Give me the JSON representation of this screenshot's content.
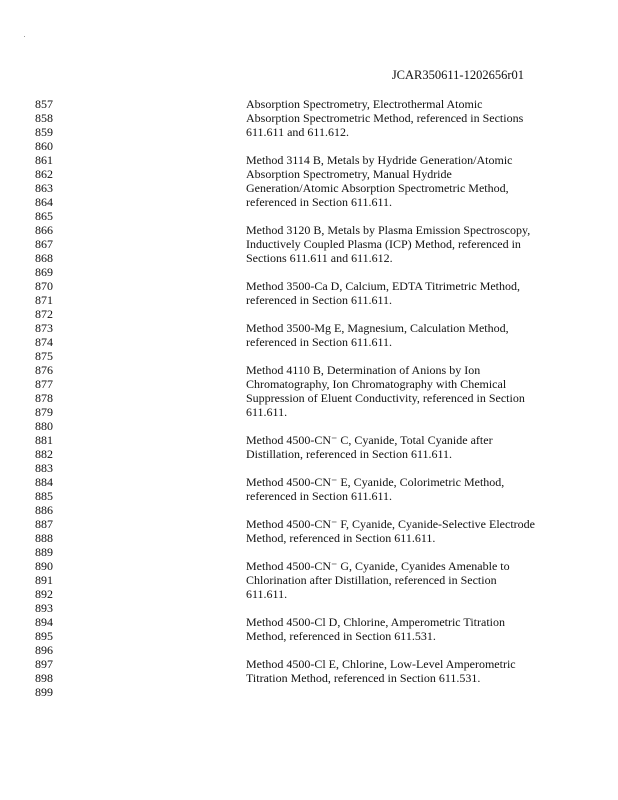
{
  "header": {
    "doc_id": "JCAR350611-1202656r01"
  },
  "lines": [
    {
      "n": "857",
      "t": "Absorption Spectrometry, Electrothermal Atomic"
    },
    {
      "n": "858",
      "t": "Absorption Spectrometric Method, referenced in Sections"
    },
    {
      "n": "859",
      "t": "611.611 and 611.612."
    },
    {
      "n": "860",
      "t": ""
    },
    {
      "n": "861",
      "t": "Method 3114 B, Metals by Hydride Generation/Atomic"
    },
    {
      "n": "862",
      "t": "Absorption Spectrometry, Manual Hydride"
    },
    {
      "n": "863",
      "t": "Generation/Atomic Absorption Spectrometric Method,"
    },
    {
      "n": "864",
      "t": "referenced in Section 611.611."
    },
    {
      "n": "865",
      "t": ""
    },
    {
      "n": "866",
      "t": "Method 3120 B, Metals by Plasma Emission Spectroscopy,"
    },
    {
      "n": "867",
      "t": "Inductively Coupled Plasma (ICP) Method, referenced in"
    },
    {
      "n": "868",
      "t": "Sections 611.611 and 611.612."
    },
    {
      "n": "869",
      "t": ""
    },
    {
      "n": "870",
      "t": "Method 3500-Ca D, Calcium, EDTA Titrimetric Method,"
    },
    {
      "n": "871",
      "t": "referenced in Section 611.611."
    },
    {
      "n": "872",
      "t": ""
    },
    {
      "n": "873",
      "t": "Method 3500-Mg E, Magnesium, Calculation Method,"
    },
    {
      "n": "874",
      "t": "referenced in Section 611.611."
    },
    {
      "n": "875",
      "t": ""
    },
    {
      "n": "876",
      "t": "Method 4110 B, Determination of Anions by Ion"
    },
    {
      "n": "877",
      "t": "Chromatography, Ion Chromatography with Chemical"
    },
    {
      "n": "878",
      "t": "Suppression of Eluent Conductivity, referenced in Section"
    },
    {
      "n": "879",
      "t": "611.611."
    },
    {
      "n": "880",
      "t": ""
    },
    {
      "n": "881",
      "t": "Method 4500-CN⁻ C, Cyanide, Total Cyanide after"
    },
    {
      "n": "882",
      "t": "Distillation, referenced in Section 611.611."
    },
    {
      "n": "883",
      "t": ""
    },
    {
      "n": "884",
      "t": "Method 4500-CN⁻ E, Cyanide, Colorimetric Method,"
    },
    {
      "n": "885",
      "t": "referenced in Section 611.611."
    },
    {
      "n": "886",
      "t": ""
    },
    {
      "n": "887",
      "t": "Method 4500-CN⁻ F, Cyanide, Cyanide-Selective Electrode"
    },
    {
      "n": "888",
      "t": "Method, referenced in Section 611.611."
    },
    {
      "n": "889",
      "t": ""
    },
    {
      "n": "890",
      "t": "Method 4500-CN⁻ G, Cyanide, Cyanides Amenable to"
    },
    {
      "n": "891",
      "t": "Chlorination after Distillation, referenced in Section"
    },
    {
      "n": "892",
      "t": "611.611."
    },
    {
      "n": "893",
      "t": ""
    },
    {
      "n": "894",
      "t": "Method 4500-Cl D, Chlorine, Amperometric Titration"
    },
    {
      "n": "895",
      "t": "Method, referenced in Section 611.531."
    },
    {
      "n": "896",
      "t": ""
    },
    {
      "n": "897",
      "t": "Method 4500-Cl E, Chlorine, Low-Level Amperometric"
    },
    {
      "n": "898",
      "t": "Titration Method, referenced in Section 611.531."
    },
    {
      "n": "899",
      "t": ""
    }
  ]
}
